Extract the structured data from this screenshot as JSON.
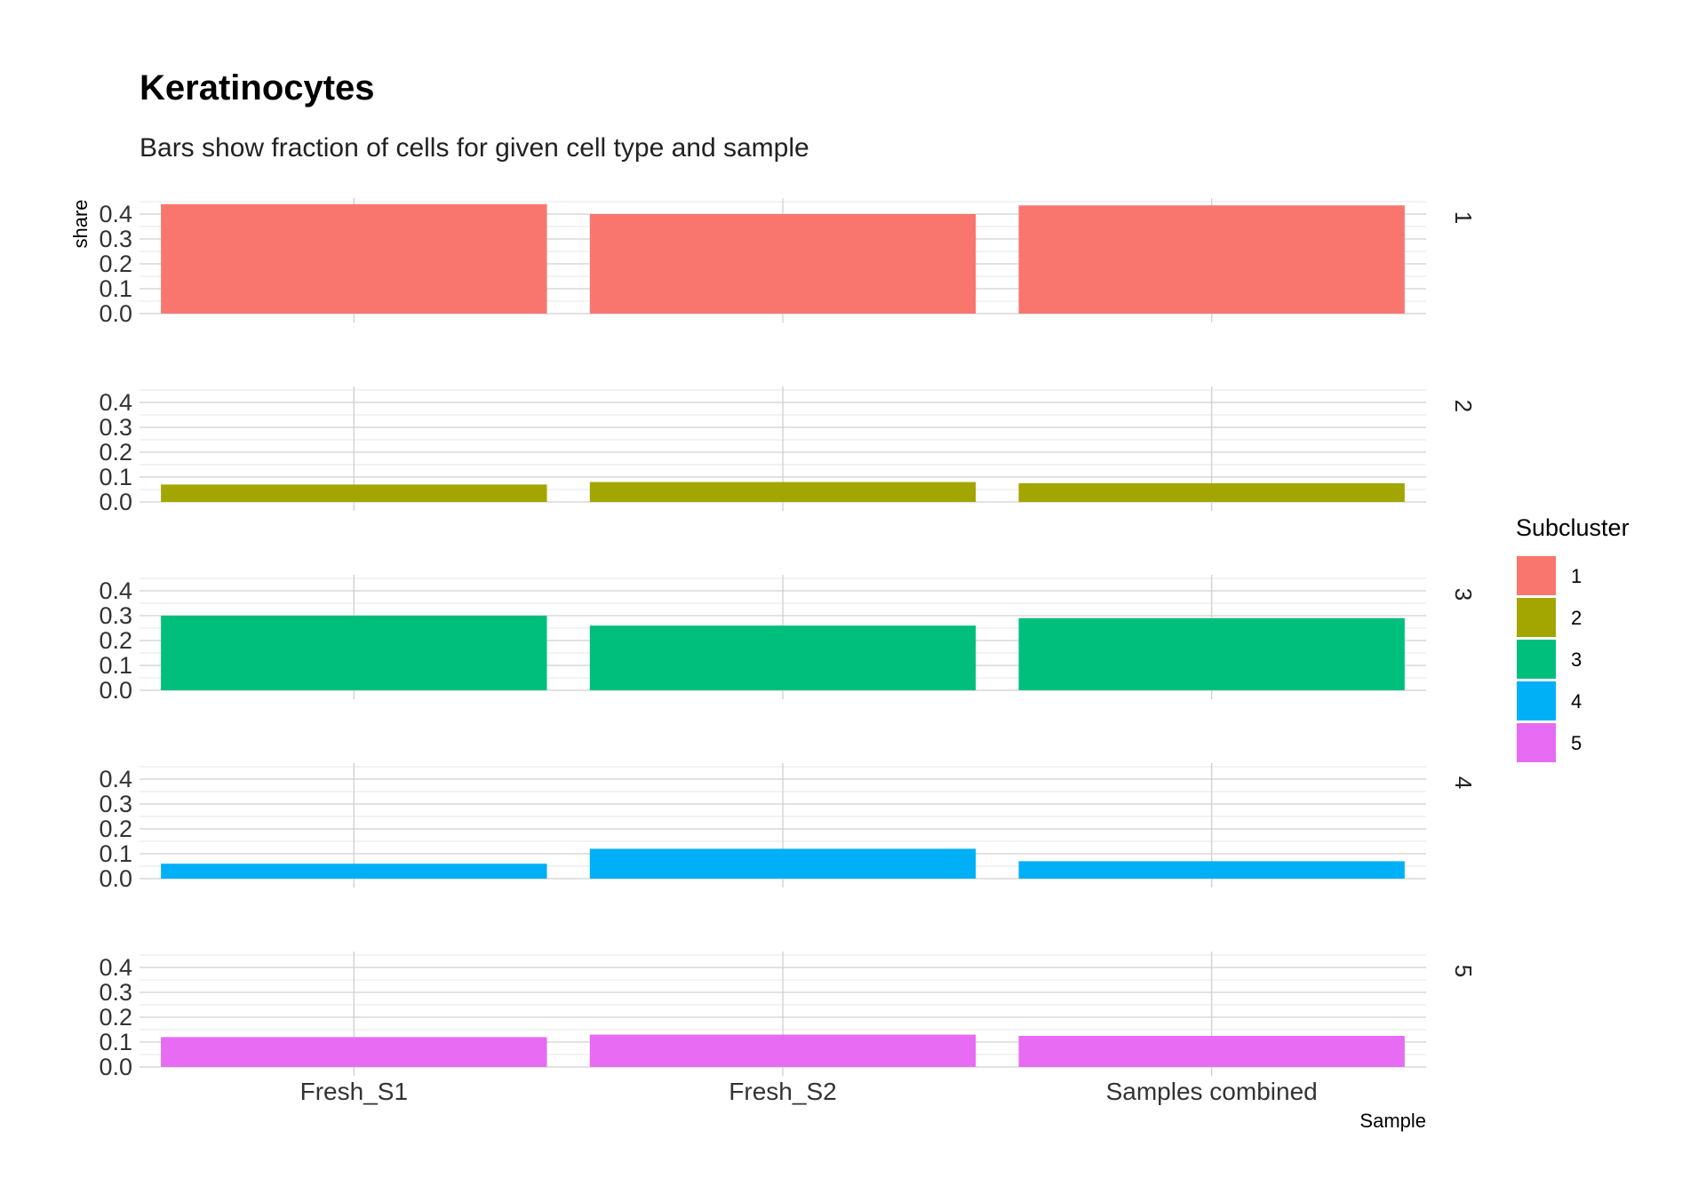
{
  "chart_data": {
    "type": "bar",
    "title": "Keratinocytes",
    "subtitle": "Bars show fraction of cells for given cell type and sample",
    "xlabel": "Sample",
    "ylabel": "share",
    "categories": [
      "Fresh_S1",
      "Fresh_S2",
      "Samples combined"
    ],
    "facets": [
      "1",
      "2",
      "3",
      "4",
      "5"
    ],
    "ylim": [
      0,
      0.45
    ],
    "yticks": [
      "0.0",
      "0.1",
      "0.2",
      "0.3",
      "0.4"
    ],
    "series": [
      {
        "name": "1",
        "color": "#F8766D",
        "values": [
          0.44,
          0.4,
          0.435
        ]
      },
      {
        "name": "2",
        "color": "#A3A500",
        "values": [
          0.07,
          0.08,
          0.075
        ]
      },
      {
        "name": "3",
        "color": "#00BF7D",
        "values": [
          0.3,
          0.26,
          0.29
        ]
      },
      {
        "name": "4",
        "color": "#00B0F6",
        "values": [
          0.06,
          0.12,
          0.07
        ]
      },
      {
        "name": "5",
        "color": "#E76BF3",
        "values": [
          0.12,
          0.13,
          0.125
        ]
      }
    ],
    "legend": {
      "title": "Subcluster",
      "position": "right"
    },
    "grid": true
  }
}
